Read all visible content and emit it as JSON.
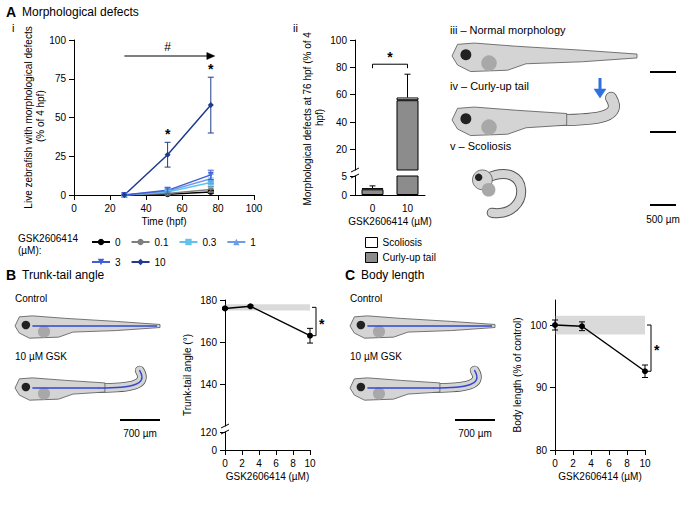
{
  "panels": {
    "A": {
      "letter": "A",
      "title": "Morphological defects",
      "images": [
        "iii – Normal morphology",
        "iv – Curly-up tail",
        "v – Scoliosis"
      ],
      "scale_bar": "500 µm"
    },
    "B": {
      "letter": "B",
      "title": "Trunk-tail angle",
      "images": [
        "Control",
        "10 µM GSK"
      ],
      "scale_bar": "700 µm"
    },
    "C": {
      "letter": "C",
      "title": "Body length",
      "images": [
        "Control",
        "10 µM GSK"
      ],
      "scale_bar": "700 µm"
    }
  },
  "chart_data": [
    {
      "label": "i",
      "type": "line",
      "x_label": "Time (hpf)",
      "y_label": "Live zebrafish with morphological defects (% of 4 hpf)",
      "x": [
        28,
        52,
        76
      ],
      "xlim": [
        0,
        100
      ],
      "xticks": [
        0,
        20,
        40,
        60,
        80,
        100
      ],
      "ylim": [
        0,
        100
      ],
      "yticks": [
        0,
        25,
        50,
        75,
        100
      ],
      "legend": "bottom",
      "legend_title": "GSK2606414 (µM):",
      "series": [
        {
          "name": "0",
          "color": "#000000",
          "marker": "circle",
          "values": [
            0,
            0.5,
            2
          ],
          "errors": [
            0,
            0.5,
            1
          ]
        },
        {
          "name": "0.1",
          "color": "#7f7f7f",
          "marker": "circle",
          "values": [
            0,
            1,
            3.5
          ],
          "errors": [
            0,
            1,
            2
          ]
        },
        {
          "name": "0.3",
          "color": "#62c2ee",
          "marker": "square",
          "values": [
            0,
            2,
            8
          ],
          "errors": [
            0,
            1,
            3
          ]
        },
        {
          "name": "1",
          "color": "#6d9ce8",
          "marker": "triangle",
          "values": [
            0,
            2.5,
            10.5
          ],
          "errors": [
            0,
            1.5,
            3
          ]
        },
        {
          "name": "3",
          "color": "#3f5fd6",
          "marker": "triangle-down",
          "values": [
            0,
            3,
            13
          ],
          "errors": [
            0,
            2,
            3
          ]
        },
        {
          "name": "10",
          "color": "#1f3a8f",
          "marker": "diamond",
          "values": [
            0,
            26,
            58
          ],
          "errors": [
            0,
            8,
            18
          ]
        }
      ],
      "annotations": [
        {
          "text": "#",
          "x_range": [
            28,
            76
          ]
        },
        {
          "text": "*",
          "x": 52
        },
        {
          "text": "*",
          "x": 76
        }
      ]
    },
    {
      "label": "ii",
      "type": "bar",
      "stacked": true,
      "x_label": "GSK2606414 (µM)",
      "y_label": "Morphological defects at 76 hpf (% of 4 hpf)",
      "categories": [
        "0",
        "10"
      ],
      "ylim": [
        0,
        100
      ],
      "ylim_segments": [
        [
          0,
          5
        ],
        [
          5,
          100
        ]
      ],
      "yticks": [
        0,
        5,
        20,
        40,
        60,
        80,
        100
      ],
      "legend": "bottom",
      "series": [
        {
          "name": "Curly-up tail",
          "color": "#8c8c8c",
          "values": [
            1.5,
            56
          ]
        },
        {
          "name": "Scoliosis",
          "color": "#ffffff",
          "values": [
            0.3,
            2
          ]
        }
      ],
      "total_errors": [
        0.6,
        17
      ],
      "annotations": [
        {
          "text": "*",
          "between": [
            "0",
            "10"
          ]
        }
      ]
    },
    {
      "type": "line",
      "x_label": "GSK2606414 (µM)",
      "y_label": "Trunk-tail angle (°)",
      "x": [
        0,
        3,
        10
      ],
      "values": [
        176,
        177,
        163
      ],
      "errors": [
        0.5,
        0.5,
        3.5
      ],
      "color": "#000000",
      "marker": "circle",
      "control_range": [
        175,
        178
      ],
      "xlim": [
        0,
        10
      ],
      "xticks": [
        0,
        2,
        4,
        6,
        8,
        10
      ],
      "ylim": [
        0,
        180
      ],
      "ylim_segments": [
        [
          0,
          120
        ],
        [
          120,
          180
        ]
      ],
      "yticks": [
        0,
        120,
        140,
        160,
        180
      ],
      "annotations": [
        {
          "text": "*"
        }
      ]
    },
    {
      "type": "line",
      "x_label": "GSK2606414 (µM)",
      "y_label": "Body length (% of control)",
      "x": [
        0,
        3,
        10
      ],
      "values": [
        100,
        99.8,
        92.6
      ],
      "errors": [
        0.8,
        0.7,
        1
      ],
      "color": "#000000",
      "marker": "circle",
      "control_range": [
        98.5,
        101.5
      ],
      "xlim": [
        0,
        10
      ],
      "xticks": [
        0,
        2,
        4,
        6,
        8,
        10
      ],
      "ylim": [
        80,
        104
      ],
      "yticks": [
        80,
        90,
        100
      ],
      "annotations": [
        {
          "text": "*"
        }
      ]
    }
  ]
}
